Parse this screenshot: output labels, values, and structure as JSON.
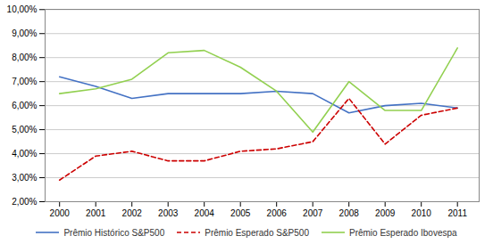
{
  "chart_data": {
    "type": "line",
    "x": [
      2000,
      2001,
      2002,
      2003,
      2004,
      2005,
      2006,
      2007,
      2008,
      2009,
      2010,
      2011
    ],
    "xlim": [
      1999.6,
      2011.6
    ],
    "xticks": [
      2000,
      2001,
      2002,
      2003,
      2004,
      2005,
      2006,
      2007,
      2008,
      2009,
      2010,
      2011
    ],
    "ylim": [
      0.02,
      0.1001
    ],
    "yticks": [
      {
        "value": 0.02,
        "label": "2,00%"
      },
      {
        "value": 0.03,
        "label": "3,00%"
      },
      {
        "value": 0.04,
        "label": "4,00%"
      },
      {
        "value": 0.05,
        "label": "5,00%"
      },
      {
        "value": 0.06,
        "label": "6,00%"
      },
      {
        "value": 0.07,
        "label": "7,00%"
      },
      {
        "value": 0.08,
        "label": "8,00%"
      },
      {
        "value": 0.09,
        "label": "9,00%"
      },
      {
        "value": 0.1,
        "label": "10,00%"
      }
    ],
    "grid": "y",
    "legend": "bottom",
    "series": [
      {
        "name": "Prêmio Histórico S&P500",
        "color": "#4472C4",
        "line_style": "solid",
        "values": [
          0.072,
          0.068,
          0.063,
          0.065,
          0.065,
          0.065,
          0.066,
          0.065,
          0.057,
          0.06,
          0.061,
          0.059
        ]
      },
      {
        "name": "Prêmio Esperado S&P500",
        "color": "#CC0000",
        "line_style": "dashed",
        "values": [
          0.029,
          0.039,
          0.041,
          0.037,
          0.037,
          0.041,
          0.042,
          0.045,
          0.063,
          0.044,
          0.056,
          0.059
        ]
      },
      {
        "name": "Prêmio Esperado Ibovespa",
        "color": "#92D050",
        "line_style": "solid",
        "values": [
          0.065,
          0.067,
          0.071,
          0.082,
          0.083,
          0.076,
          0.066,
          0.049,
          0.07,
          0.058,
          0.058,
          0.084
        ]
      }
    ]
  }
}
